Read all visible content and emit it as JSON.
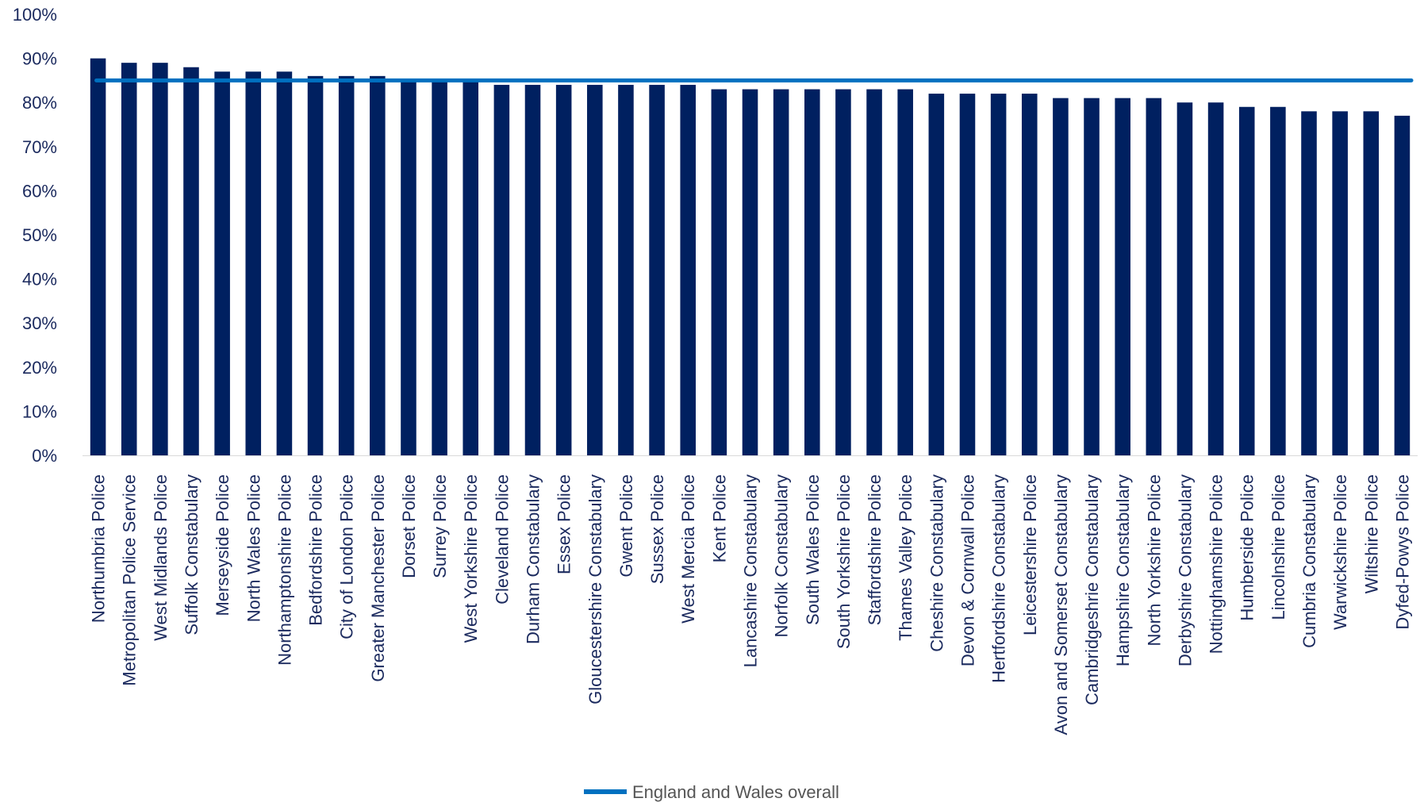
{
  "chart_data": {
    "type": "bar",
    "title": "",
    "xlabel": "",
    "ylabel": "",
    "ylim": [
      0,
      100
    ],
    "yticks": [
      0,
      10,
      20,
      30,
      40,
      50,
      60,
      70,
      80,
      90,
      100
    ],
    "ytick_labels": [
      "0%",
      "10%",
      "20%",
      "30%",
      "40%",
      "50%",
      "60%",
      "70%",
      "80%",
      "90%",
      "100%"
    ],
    "grid": false,
    "legend_position": "bottom",
    "categories": [
      "Northumbria Police",
      "Metropolitan Police Service",
      "West Midlands Police",
      "Suffolk Constabulary",
      "Merseyside Police",
      "North Wales Police",
      "Northamptonshire Police",
      "Bedfordshire Police",
      "City of London Police",
      "Greater Manchester Police",
      "Dorset Police",
      "Surrey Police",
      "West Yorkshire Police",
      "Cleveland Police",
      "Durham Constabulary",
      "Essex Police",
      "Gloucestershire Constabulary",
      "Gwent Police",
      "Sussex Police",
      "West Mercia Police",
      "Kent Police",
      "Lancashire Constabulary",
      "Norfolk Constabulary",
      "South Wales Police",
      "South Yorkshire Police",
      "Staffordshire Police",
      "Thames Valley Police",
      "Cheshire Constabulary",
      "Devon & Cornwall Police",
      "Hertfordshire Constabulary",
      "Leicestershire Police",
      "Avon and Somerset Constabulary",
      "Cambridgeshrie Constabulary",
      "Hampshire Constabulary",
      "North Yorkshire Police",
      "Derbyshire Constabulary",
      "Nottinghamshire Police",
      "Humberside Police",
      "Lincolnshire Police",
      "Cumbria Constabulary",
      "Warwickshire Police",
      "Wiltshire Police",
      "Dyfed-Powys Police"
    ],
    "series": [
      {
        "type": "bar",
        "color": "#002060",
        "values": [
          90,
          89,
          89,
          88,
          87,
          87,
          87,
          86,
          86,
          86,
          85,
          85,
          85,
          84,
          84,
          84,
          84,
          84,
          84,
          84,
          83,
          83,
          83,
          83,
          83,
          83,
          83,
          82,
          82,
          82,
          82,
          81,
          81,
          81,
          81,
          80,
          80,
          79,
          79,
          78,
          78,
          78,
          77
        ]
      },
      {
        "type": "line",
        "name": "England and Wales overall",
        "color": "#0070C0",
        "value": 85
      }
    ]
  }
}
